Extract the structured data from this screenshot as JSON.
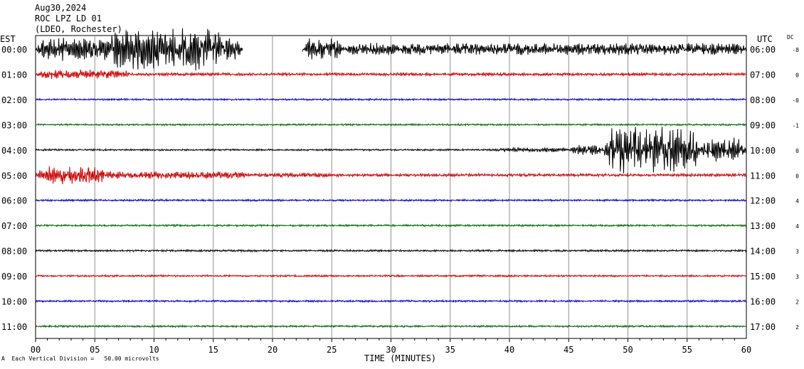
{
  "header": {
    "date": "Aug30,2024",
    "station": "ROC LPZ LD 01",
    "network": "(LDEO, Rochester)"
  },
  "left_timezone": "EST",
  "right_timezone": "UTC",
  "dc_header": "DC",
  "footer_note": "Each Vertical Division =   50.00 microvolts",
  "footer_mark": "A",
  "chart_data": {
    "type": "line",
    "title": "",
    "xlabel": "TIME (MINUTES)",
    "xlim": [
      0,
      60
    ],
    "x_ticks": [
      "00",
      "05",
      "10",
      "15",
      "20",
      "25",
      "30",
      "35",
      "40",
      "45",
      "50",
      "55",
      "60"
    ],
    "grid": "vertical lines every 5 minutes",
    "series": [
      {
        "left_label": "00:00",
        "right_label": "06:00",
        "dc": "-8",
        "color": "#000000",
        "noise": 2,
        "events": [
          {
            "start": 0,
            "end": 17.5,
            "amp": 16
          },
          {
            "start": 6,
            "end": 16,
            "amp": 28
          },
          {
            "start": 22.5,
            "end": 26,
            "amp": 14
          },
          {
            "start": 26,
            "end": 60,
            "amp": 8
          }
        ],
        "gap": [
          17.5,
          22.5
        ]
      },
      {
        "left_label": "01:00",
        "right_label": "07:00",
        "dc": "0",
        "color": "#cc0000",
        "noise": 2,
        "events": [
          {
            "start": 0,
            "end": 8,
            "amp": 6
          }
        ]
      },
      {
        "left_label": "02:00",
        "right_label": "08:00",
        "dc": "-0",
        "color": "#0000bb",
        "noise": 1.2,
        "events": []
      },
      {
        "left_label": "03:00",
        "right_label": "09:00",
        "dc": "-1",
        "color": "#006600",
        "noise": 1.2,
        "events": []
      },
      {
        "left_label": "04:00",
        "right_label": "10:00",
        "dc": "0",
        "color": "#000000",
        "noise": 1.2,
        "events": [
          {
            "start": 38.5,
            "end": 45,
            "amp": 3
          },
          {
            "start": 45,
            "end": 48,
            "amp": 7
          },
          {
            "start": 48,
            "end": 56,
            "amp": 32
          },
          {
            "start": 56,
            "end": 60,
            "amp": 16
          }
        ]
      },
      {
        "left_label": "05:00",
        "right_label": "11:00",
        "dc": "0",
        "color": "#cc0000",
        "noise": 2,
        "events": [
          {
            "start": 0,
            "end": 6,
            "amp": 12
          },
          {
            "start": 5,
            "end": 18,
            "amp": 5
          },
          {
            "start": 18,
            "end": 25,
            "amp": 3
          }
        ]
      },
      {
        "left_label": "06:00",
        "right_label": "12:00",
        "dc": "4",
        "color": "#0000bb",
        "noise": 1.3,
        "events": []
      },
      {
        "left_label": "07:00",
        "right_label": "13:00",
        "dc": "4",
        "color": "#006600",
        "noise": 1.3,
        "events": []
      },
      {
        "left_label": "08:00",
        "right_label": "14:00",
        "dc": "3",
        "color": "#000000",
        "noise": 1.3,
        "events": []
      },
      {
        "left_label": "09:00",
        "right_label": "15:00",
        "dc": "3",
        "color": "#cc0000",
        "noise": 1.3,
        "events": []
      },
      {
        "left_label": "10:00",
        "right_label": "16:00",
        "dc": "2",
        "color": "#0000bb",
        "noise": 1.3,
        "events": []
      },
      {
        "left_label": "11:00",
        "right_label": "17:00",
        "dc": "2",
        "color": "#006600",
        "noise": 1.3,
        "events": []
      }
    ]
  }
}
